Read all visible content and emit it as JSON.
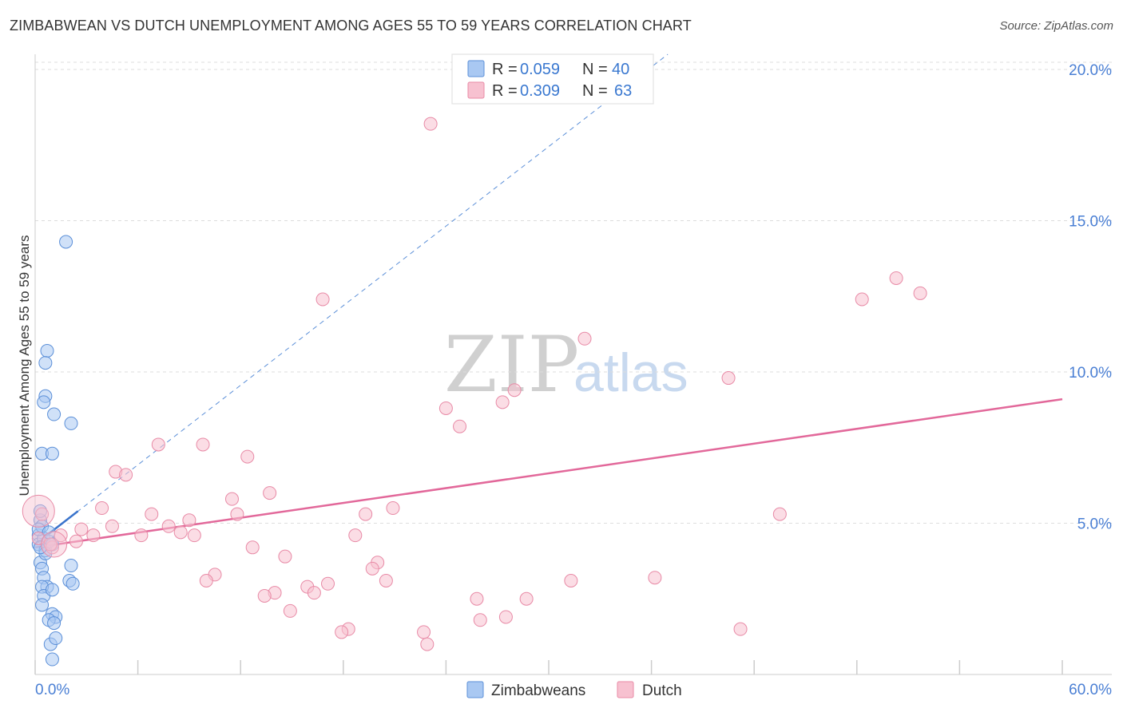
{
  "title": "ZIMBABWEAN VS DUTCH UNEMPLOYMENT AMONG AGES 55 TO 59 YEARS CORRELATION CHART",
  "source": "Source: ZipAtlas.com",
  "watermark": {
    "zip": "ZIP",
    "atlas": "atlas"
  },
  "colors": {
    "zimbabwean_fill": "#a9c8f2",
    "zimbabwean_stroke": "#5b8fd8",
    "zimbabwean_line": "#3a74cc",
    "dutch_fill": "#f7c1d0",
    "dutch_stroke": "#e88aa6",
    "dutch_line": "#e2689a",
    "grid": "#dddddd",
    "tick_label": "#4a7fd4"
  },
  "legend": {
    "r_label": "R =",
    "n_label": "N =",
    "zimbabwean_r": "0.059",
    "zimbabwean_n": "40",
    "dutch_r": "0.309",
    "dutch_n": "63"
  },
  "chart_data": {
    "type": "scatter",
    "title": "ZIMBABWEAN VS DUTCH UNEMPLOYMENT AMONG AGES 55 TO 59 YEARS CORRELATION CHART",
    "xlabel": "",
    "ylabel": "Unemployment Among Ages 55 to 59 years",
    "xlim": [
      0,
      60
    ],
    "ylim": [
      0,
      20.5
    ],
    "x_tick_labels": [
      "0.0%",
      "60.0%"
    ],
    "y_ticks": [
      5,
      10,
      15,
      20
    ],
    "y_tick_labels": [
      "5.0%",
      "10.0%",
      "15.0%",
      "20.0%"
    ],
    "grid": true,
    "legend_placement": "top-center",
    "series": [
      {
        "name": "Zimbabweans",
        "r": 0.059,
        "n": 40,
        "trend": {
          "x": [
            0,
            2.5
          ],
          "y": [
            4.3,
            5.4
          ],
          "style": "solid"
        },
        "trend_extended": {
          "x": [
            0,
            60
          ],
          "y": [
            4.3,
            30.6
          ],
          "style": "dashed"
        },
        "points": [
          [
            0.2,
            4.6
          ],
          [
            0.3,
            5.1
          ],
          [
            0.4,
            4.9
          ],
          [
            0.2,
            4.3
          ],
          [
            0.5,
            4.5
          ],
          [
            0.6,
            4.1
          ],
          [
            0.8,
            4.4
          ],
          [
            1.0,
            4.3
          ],
          [
            0.3,
            3.7
          ],
          [
            0.4,
            3.5
          ],
          [
            0.5,
            3.2
          ],
          [
            0.7,
            2.9
          ],
          [
            0.4,
            2.9
          ],
          [
            0.5,
            2.6
          ],
          [
            1.0,
            2.8
          ],
          [
            0.4,
            2.3
          ],
          [
            1.0,
            2.0
          ],
          [
            1.2,
            1.9
          ],
          [
            0.8,
            1.8
          ],
          [
            1.1,
            1.7
          ],
          [
            0.9,
            1.0
          ],
          [
            1.2,
            1.2
          ],
          [
            1.0,
            0.5
          ],
          [
            0.3,
            5.4
          ],
          [
            2.0,
            3.1
          ],
          [
            2.2,
            3.0
          ],
          [
            2.1,
            3.6
          ],
          [
            0.6,
            9.2
          ],
          [
            0.5,
            9.0
          ],
          [
            1.1,
            8.6
          ],
          [
            2.1,
            8.3
          ],
          [
            0.7,
            10.7
          ],
          [
            0.6,
            10.3
          ],
          [
            0.4,
            7.3
          ],
          [
            1.0,
            7.3
          ],
          [
            1.8,
            14.3
          ],
          [
            0.2,
            4.8
          ],
          [
            0.6,
            4.0
          ],
          [
            0.3,
            4.2
          ],
          [
            0.8,
            4.7
          ]
        ]
      },
      {
        "name": "Dutch",
        "r": 0.309,
        "n": 63,
        "trend": {
          "x": [
            0,
            60
          ],
          "y": [
            4.2,
            9.1
          ],
          "style": "solid"
        },
        "points": [
          [
            23.1,
            18.2
          ],
          [
            16.8,
            12.4
          ],
          [
            48.3,
            12.4
          ],
          [
            50.3,
            13.1
          ],
          [
            51.7,
            12.6
          ],
          [
            32.1,
            11.1
          ],
          [
            40.5,
            9.8
          ],
          [
            24.0,
            8.8
          ],
          [
            27.3,
            9.0
          ],
          [
            28.0,
            9.4
          ],
          [
            24.8,
            8.2
          ],
          [
            7.2,
            7.6
          ],
          [
            9.8,
            7.6
          ],
          [
            12.4,
            7.2
          ],
          [
            4.7,
            6.7
          ],
          [
            5.3,
            6.6
          ],
          [
            13.7,
            6.0
          ],
          [
            11.5,
            5.8
          ],
          [
            3.9,
            5.5
          ],
          [
            11.8,
            5.3
          ],
          [
            6.8,
            5.3
          ],
          [
            9.0,
            5.1
          ],
          [
            20.9,
            5.5
          ],
          [
            19.3,
            5.3
          ],
          [
            43.5,
            5.3
          ],
          [
            0.4,
            5.3
          ],
          [
            1.5,
            4.6
          ],
          [
            2.7,
            4.8
          ],
          [
            3.4,
            4.6
          ],
          [
            4.5,
            4.9
          ],
          [
            6.2,
            4.6
          ],
          [
            7.8,
            4.9
          ],
          [
            8.5,
            4.7
          ],
          [
            9.3,
            4.6
          ],
          [
            18.7,
            4.6
          ],
          [
            1.0,
            4.2
          ],
          [
            2.4,
            4.4
          ],
          [
            12.7,
            4.2
          ],
          [
            14.6,
            3.9
          ],
          [
            20.0,
            3.7
          ],
          [
            19.7,
            3.5
          ],
          [
            10.5,
            3.3
          ],
          [
            10.0,
            3.1
          ],
          [
            20.5,
            3.1
          ],
          [
            31.3,
            3.1
          ],
          [
            36.2,
            3.2
          ],
          [
            15.9,
            2.9
          ],
          [
            17.1,
            3.0
          ],
          [
            16.3,
            2.7
          ],
          [
            14.0,
            2.7
          ],
          [
            13.4,
            2.6
          ],
          [
            25.8,
            2.5
          ],
          [
            28.7,
            2.5
          ],
          [
            14.9,
            2.1
          ],
          [
            26.0,
            1.8
          ],
          [
            27.5,
            1.9
          ],
          [
            18.3,
            1.5
          ],
          [
            17.9,
            1.4
          ],
          [
            22.7,
            1.4
          ],
          [
            22.9,
            1.0
          ],
          [
            41.2,
            1.5
          ],
          [
            0.2,
            4.5
          ],
          [
            0.9,
            4.3
          ]
        ]
      }
    ]
  }
}
